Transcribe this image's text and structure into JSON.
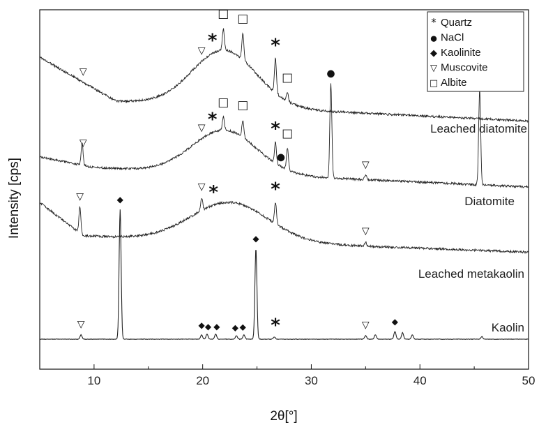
{
  "chart_data": {
    "type": "line",
    "xlabel": "2θ[°]",
    "ylabel": "Intensity [cps]",
    "xlim": [
      5,
      50
    ],
    "xticks": [
      10,
      20,
      30,
      40,
      50
    ],
    "yticks": false,
    "series": [
      {
        "name": "Leached diatomite",
        "style": "amorphous",
        "hump_center": 22,
        "hump_height": 0.13,
        "hump_width": 4.2,
        "peaks": [
          {
            "x": 21.9,
            "h": 0.05
          },
          {
            "x": 23.7,
            "h": 0.06
          },
          {
            "x": 26.7,
            "h": 0.08
          },
          {
            "x": 27.8,
            "h": 0.02
          }
        ]
      },
      {
        "name": "Diatomite",
        "style": "amorphous",
        "hump_center": 22,
        "hump_height": 0.1,
        "hump_width": 4.2,
        "peaks": [
          {
            "x": 8.9,
            "h": 0.05
          },
          {
            "x": 21.9,
            "h": 0.03
          },
          {
            "x": 23.7,
            "h": 0.04
          },
          {
            "x": 26.7,
            "h": 0.05
          },
          {
            "x": 27.8,
            "h": 0.05
          },
          {
            "x": 31.8,
            "h": 0.22
          },
          {
            "x": 35.0,
            "h": 0.01
          },
          {
            "x": 45.5,
            "h": 0.22
          }
        ]
      },
      {
        "name": "Leached metakaolin",
        "style": "amorphous",
        "hump_center": 22.5,
        "hump_height": 0.09,
        "hump_width": 5,
        "peaks": [
          {
            "x": 8.7,
            "h": 0.06
          },
          {
            "x": 19.9,
            "h": 0.03
          },
          {
            "x": 26.7,
            "h": 0.05
          },
          {
            "x": 35.0,
            "h": 0.01
          }
        ]
      },
      {
        "name": "Kaolin",
        "style": "crystalline",
        "hump_center": 22,
        "hump_height": 0.0,
        "hump_width": 4,
        "peaks": [
          {
            "x": 8.8,
            "h": 0.01
          },
          {
            "x": 12.4,
            "h": 0.3
          },
          {
            "x": 19.9,
            "h": 0.01
          },
          {
            "x": 20.4,
            "h": 0.012
          },
          {
            "x": 21.2,
            "h": 0.012
          },
          {
            "x": 23.1,
            "h": 0.008
          },
          {
            "x": 23.8,
            "h": 0.01
          },
          {
            "x": 24.9,
            "h": 0.21
          },
          {
            "x": 26.6,
            "h": 0.005
          },
          {
            "x": 35.0,
            "h": 0.008
          },
          {
            "x": 35.9,
            "h": 0.01
          },
          {
            "x": 37.7,
            "h": 0.018
          },
          {
            "x": 38.4,
            "h": 0.015
          },
          {
            "x": 39.3,
            "h": 0.01
          },
          {
            "x": 45.7,
            "h": 0.006
          }
        ]
      }
    ],
    "legend": [
      {
        "symbol": "*",
        "label": "Quartz"
      },
      {
        "symbol": "●",
        "label": "NaCl"
      },
      {
        "symbol": "◆",
        "label": "Kaolinite"
      },
      {
        "symbol": "▽",
        "label": "Muscovite"
      },
      {
        "symbol": "□",
        "label": "Albite"
      }
    ],
    "legend_position": "top-right",
    "annotations": [
      {
        "series": 0,
        "x": 9,
        "symbol": "▽"
      },
      {
        "series": 0,
        "x": 19.9,
        "symbol": "▽"
      },
      {
        "series": 0,
        "x": 20.9,
        "symbol": "*"
      },
      {
        "series": 0,
        "x": 21.9,
        "symbol": "□"
      },
      {
        "series": 0,
        "x": 23.7,
        "symbol": "□"
      },
      {
        "series": 0,
        "x": 26.7,
        "symbol": "*"
      },
      {
        "series": 0,
        "x": 27.8,
        "symbol": "□"
      },
      {
        "series": 1,
        "x": 9,
        "symbol": "▽"
      },
      {
        "series": 1,
        "x": 19.9,
        "symbol": "▽"
      },
      {
        "series": 1,
        "x": 20.9,
        "symbol": "*"
      },
      {
        "series": 1,
        "x": 21.9,
        "symbol": "□"
      },
      {
        "series": 1,
        "x": 23.7,
        "symbol": "□"
      },
      {
        "series": 1,
        "x": 26.7,
        "symbol": "*"
      },
      {
        "series": 1,
        "x": 27.2,
        "symbol": "●"
      },
      {
        "series": 1,
        "x": 27.8,
        "symbol": "□"
      },
      {
        "series": 1,
        "x": 31.8,
        "symbol": "●"
      },
      {
        "series": 1,
        "x": 35.0,
        "symbol": "▽"
      },
      {
        "series": 1,
        "x": 45.5,
        "symbol": "●"
      },
      {
        "series": 2,
        "x": 8.7,
        "symbol": "▽"
      },
      {
        "series": 2,
        "x": 19.9,
        "symbol": "▽"
      },
      {
        "series": 2,
        "x": 21.0,
        "symbol": "*"
      },
      {
        "series": 2,
        "x": 26.7,
        "symbol": "*"
      },
      {
        "series": 2,
        "x": 35.0,
        "symbol": "▽"
      },
      {
        "series": 3,
        "x": 8.8,
        "symbol": "▽"
      },
      {
        "series": 3,
        "x": 12.4,
        "symbol": "◆"
      },
      {
        "series": 3,
        "x": 19.9,
        "symbol": "◆"
      },
      {
        "series": 3,
        "x": 20.5,
        "symbol": "◆"
      },
      {
        "series": 3,
        "x": 21.3,
        "symbol": "◆"
      },
      {
        "series": 3,
        "x": 23.0,
        "symbol": "◆"
      },
      {
        "series": 3,
        "x": 23.7,
        "symbol": "◆"
      },
      {
        "series": 3,
        "x": 24.9,
        "symbol": "◆"
      },
      {
        "series": 3,
        "x": 26.7,
        "symbol": "*"
      },
      {
        "series": 3,
        "x": 35.0,
        "symbol": "▽"
      },
      {
        "series": 3,
        "x": 37.7,
        "symbol": "◆"
      }
    ]
  }
}
